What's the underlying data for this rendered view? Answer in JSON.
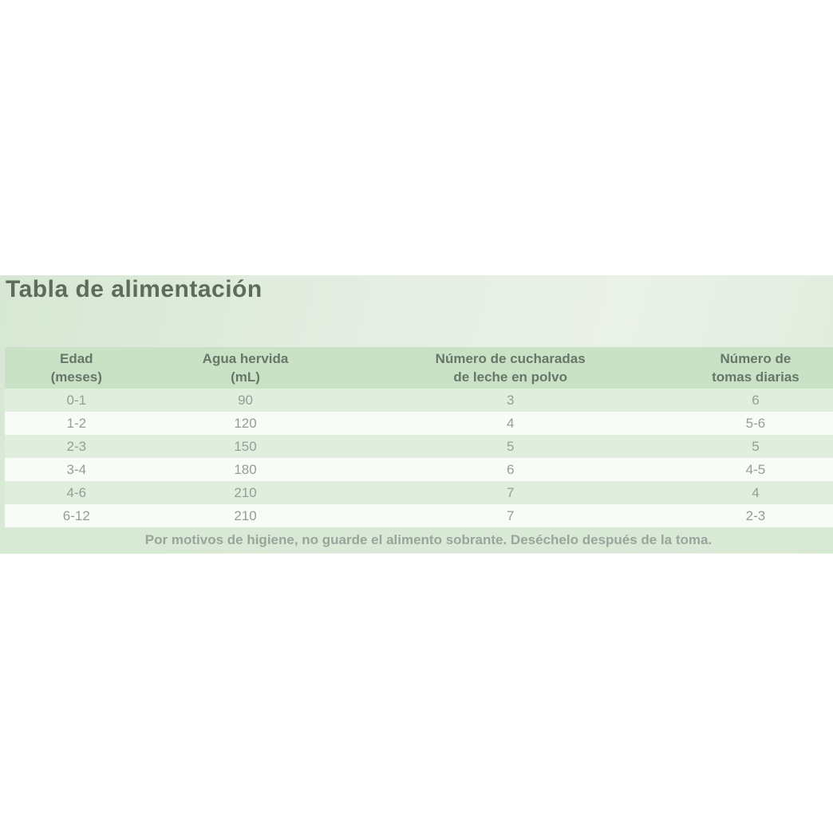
{
  "panel": {
    "title": "Tabla de alimentación",
    "note": "Por motivos de higiene, no guarde el alimento sobrante. Deséchelo después de la toma.",
    "colors": {
      "panel_gradient_start": "#d6e8d3",
      "panel_gradient_end": "#eaf1e7",
      "header_band": "#c9e2c6",
      "row_green": "#e0eede",
      "row_white": "#f9fbf8",
      "footer_band": "#d8e9d5",
      "title_text": "#5e6c5b",
      "header_text": "#68766a",
      "cell_text": "#949e97",
      "note_text": "#9aa49c"
    }
  },
  "table": {
    "headers": [
      {
        "line1": "Edad",
        "line2": "(meses)"
      },
      {
        "line1": "Agua hervida",
        "line2": "(mL)"
      },
      {
        "line1": "Número de cucharadas",
        "line2": "de leche en polvo"
      },
      {
        "line1": "Número de",
        "line2": "tomas diarias"
      }
    ],
    "rows": [
      [
        "0-1",
        "90",
        "3",
        "6"
      ],
      [
        "1-2",
        "120",
        "4",
        "5-6"
      ],
      [
        "2-3",
        "150",
        "5",
        "5"
      ],
      [
        "3-4",
        "180",
        "6",
        "4-5"
      ],
      [
        "4-6",
        "210",
        "7",
        "4"
      ],
      [
        "6-12",
        "210",
        "7",
        "2-3"
      ]
    ]
  }
}
